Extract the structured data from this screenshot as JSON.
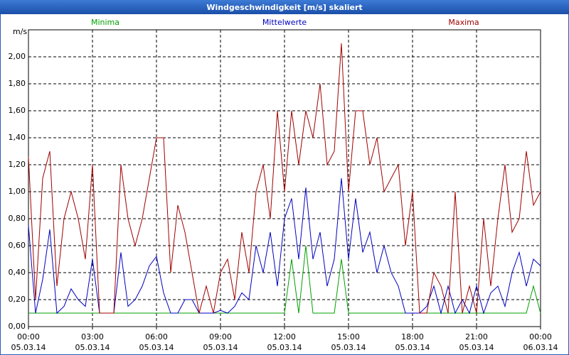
{
  "chart_data": {
    "type": "line",
    "title": "Windgeschwindigkeit [m/s] skaliert",
    "y_unit": "m/s",
    "x": [
      0,
      20,
      40,
      60,
      80,
      100,
      120,
      140,
      160,
      180,
      200,
      220,
      240,
      260,
      280,
      300,
      320,
      340,
      360,
      380,
      400,
      420,
      440,
      460,
      480,
      500,
      520,
      540,
      560,
      580,
      600,
      620,
      640,
      660,
      680,
      700,
      720,
      740,
      760,
      780,
      800,
      820,
      840,
      860,
      880,
      900,
      920,
      940,
      960,
      980,
      1000,
      1020,
      1040,
      1060,
      1080,
      1100,
      1120,
      1140,
      1160,
      1180,
      1200,
      1220,
      1240,
      1260,
      1280,
      1300,
      1320,
      1340,
      1360,
      1380,
      1400,
      1420,
      1440
    ],
    "xlim": [
      0,
      1440
    ],
    "xticks": [
      {
        "value": 0,
        "label": "00:00"
      },
      {
        "value": 180,
        "label": "03:00"
      },
      {
        "value": 360,
        "label": "06:00"
      },
      {
        "value": 540,
        "label": "09:00"
      },
      {
        "value": 720,
        "label": "12:00"
      },
      {
        "value": 900,
        "label": "15:00"
      },
      {
        "value": 1080,
        "label": "18:00"
      },
      {
        "value": 1260,
        "label": "21:00"
      },
      {
        "value": 1440,
        "label": "00:00"
      }
    ],
    "xtick_dates": [
      "05.03.14",
      "05.03.14",
      "05.03.14",
      "05.03.14",
      "05.03.14",
      "05.03.14",
      "05.03.14",
      "05.03.14",
      "06.03.14"
    ],
    "ylim": [
      0,
      2.2
    ],
    "yticks": [
      {
        "value": 0,
        "label": "0,00"
      },
      {
        "value": 0.2,
        "label": "0,20"
      },
      {
        "value": 0.4,
        "label": "0,40"
      },
      {
        "value": 0.6,
        "label": "0,60"
      },
      {
        "value": 0.8,
        "label": "0,80"
      },
      {
        "value": 1,
        "label": "1,00"
      },
      {
        "value": 1.2,
        "label": "1,20"
      },
      {
        "value": 1.4,
        "label": "1,40"
      },
      {
        "value": 1.6,
        "label": "1,60"
      },
      {
        "value": 1.8,
        "label": "1,80"
      },
      {
        "value": 2,
        "label": "2,00"
      }
    ],
    "grid": true,
    "series": [
      {
        "name": "Minima",
        "color": "#00a000",
        "values": [
          0.1,
          0.1,
          0.1,
          0.1,
          0.1,
          0.1,
          0.1,
          0.1,
          0.1,
          0.1,
          0.1,
          0.1,
          0.1,
          0.1,
          0.1,
          0.1,
          0.1,
          0.1,
          0.1,
          0.1,
          0.1,
          0.1,
          0.1,
          0.1,
          0.1,
          0.1,
          0.1,
          0.1,
          0.1,
          0.1,
          0.1,
          0.1,
          0.1,
          0.1,
          0.1,
          0.1,
          0.1,
          0.5,
          0.1,
          0.6,
          0.1,
          0.1,
          0.1,
          0.1,
          0.5,
          0.1,
          0.1,
          0.1,
          0.1,
          0.1,
          0.1,
          0.1,
          0.1,
          0.1,
          0.1,
          0.1,
          0.1,
          0.1,
          0.1,
          0.1,
          0.1,
          0.1,
          0.1,
          0.1,
          0.1,
          0.1,
          0.1,
          0.1,
          0.1,
          0.1,
          0.1,
          0.3,
          0.1
        ]
      },
      {
        "name": "Mittelwerte",
        "color": "#0000c0",
        "values": [
          0.75,
          0.1,
          0.35,
          0.72,
          0.1,
          0.15,
          0.28,
          0.2,
          0.15,
          0.5,
          0.1,
          0.1,
          0.1,
          0.55,
          0.15,
          0.2,
          0.3,
          0.45,
          0.52,
          0.25,
          0.1,
          0.1,
          0.2,
          0.2,
          0.1,
          0.1,
          0.1,
          0.12,
          0.1,
          0.15,
          0.25,
          0.2,
          0.6,
          0.4,
          0.7,
          0.3,
          0.8,
          0.95,
          0.5,
          1.03,
          0.5,
          0.7,
          0.3,
          0.5,
          1.1,
          0.5,
          0.95,
          0.55,
          0.7,
          0.4,
          0.6,
          0.4,
          0.3,
          0.1,
          0.1,
          0.1,
          0.15,
          0.3,
          0.1,
          0.3,
          0.1,
          0.2,
          0.1,
          0.3,
          0.1,
          0.25,
          0.3,
          0.15,
          0.4,
          0.55,
          0.3,
          0.5,
          0.45
        ]
      },
      {
        "name": "Maxima",
        "color": "#a00000",
        "values": [
          1.26,
          0.2,
          1.1,
          1.3,
          0.3,
          0.8,
          1.0,
          0.8,
          0.5,
          1.2,
          0.1,
          0.1,
          0.1,
          1.2,
          0.8,
          0.6,
          0.8,
          1.1,
          1.4,
          1.4,
          0.4,
          0.9,
          0.7,
          0.4,
          0.1,
          0.3,
          0.1,
          0.4,
          0.5,
          0.2,
          0.7,
          0.4,
          1.0,
          1.2,
          0.8,
          1.6,
          1.0,
          1.6,
          1.2,
          1.6,
          1.4,
          1.8,
          1.2,
          1.3,
          2.1,
          1.0,
          1.6,
          1.6,
          1.2,
          1.4,
          1.0,
          1.1,
          1.2,
          0.6,
          1.0,
          0.1,
          0.1,
          0.4,
          0.3,
          0.1,
          1.0,
          0.1,
          0.3,
          0.1,
          0.8,
          0.3,
          0.8,
          1.2,
          0.7,
          0.8,
          1.3,
          0.9,
          1.0
        ]
      }
    ]
  }
}
